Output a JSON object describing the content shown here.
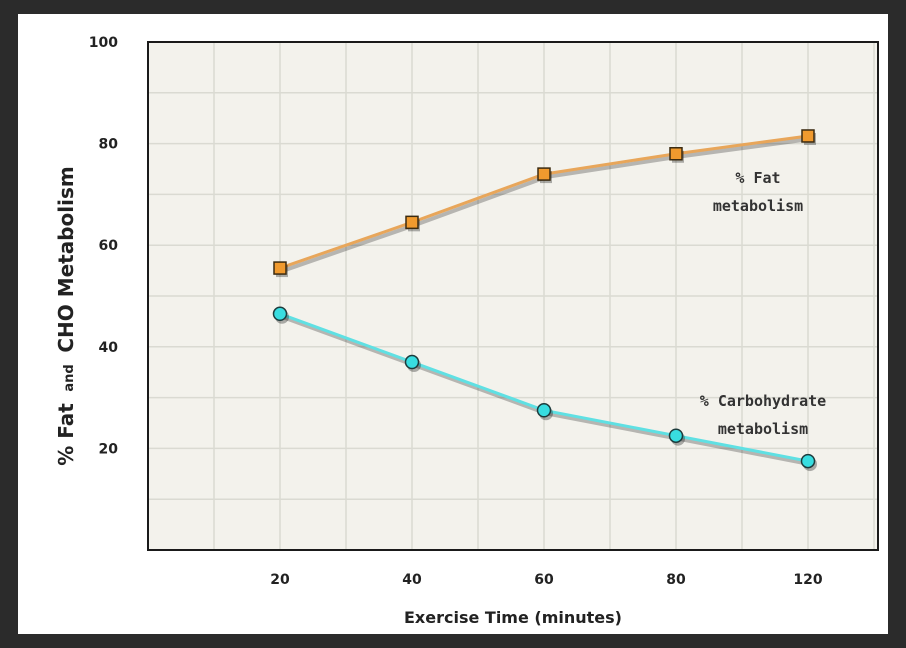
{
  "chart_data": {
    "type": "line",
    "title": "",
    "xlabel": "Exercise Time (minutes)",
    "ylabel_parts": [
      "% Fat",
      "and",
      "CHO Metabolism"
    ],
    "categories": [
      "20",
      "40",
      "60",
      "80",
      "120"
    ],
    "ylim": [
      0,
      100
    ],
    "yticks": [
      "20",
      "40",
      "60",
      "80",
      "100"
    ],
    "grid": true,
    "series": [
      {
        "name_lines": [
          "% Fat",
          "metabolism"
        ],
        "values": [
          55.5,
          64.5,
          74,
          78,
          81.5
        ],
        "marker": "square",
        "color": "#f09a2e",
        "line_color": "#e8a65a"
      },
      {
        "name_lines": [
          "% Carbohydrate",
          "metabolism"
        ],
        "values": [
          46.5,
          37,
          27.5,
          22.5,
          17.5
        ],
        "marker": "circle",
        "color": "#38dde0",
        "line_color": "#5fe0e3"
      }
    ],
    "colors": {
      "plot_bg": "#f3f2ec",
      "grid": "#dadad2",
      "frame": "#1a1a1a",
      "page_bg": "#2b2b2b"
    }
  }
}
